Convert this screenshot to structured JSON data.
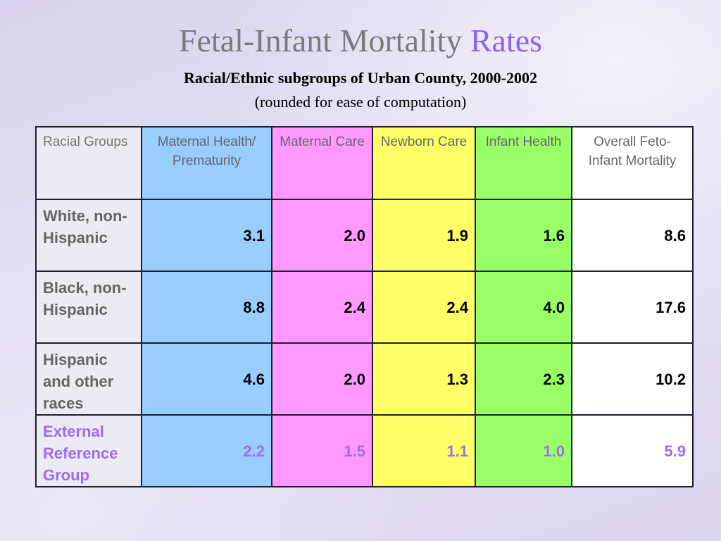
{
  "title": {
    "main": "Fetal-Infant Mortality",
    "accent": "Rates"
  },
  "subtitle": "Racial/Ethnic subgroups of Urban County, 2000-2002",
  "note": "(rounded for ease of computation)",
  "colors": {
    "maternal_health": "#99ccff",
    "maternal_care": "#ff99ff",
    "newborn_care": "#ffff66",
    "infant_health": "#99ff66",
    "reference_text": "#9c6cf2"
  },
  "table": {
    "headers": [
      "Racial Groups",
      "Maternal Health/ Prematurity",
      "Maternal Care",
      "Newborn Care",
      "Infant Health",
      "Overall Feto-Infant Mortality"
    ],
    "rows": [
      {
        "group": "White, non-Hispanic",
        "values": [
          "3.1",
          "2.0",
          "1.9",
          "1.6",
          "8.6"
        ]
      },
      {
        "group": "Black, non-Hispanic",
        "values": [
          "8.8",
          "2.4",
          "2.4",
          "4.0",
          "17.6"
        ]
      },
      {
        "group": "Hispanic and other races",
        "values": [
          "4.6",
          "2.0",
          "1.3",
          "2.3",
          "10.2"
        ]
      },
      {
        "group": "External Reference Group",
        "values": [
          "2.2",
          "1.5",
          "1.1",
          "1.0",
          "5.9"
        ]
      }
    ]
  }
}
